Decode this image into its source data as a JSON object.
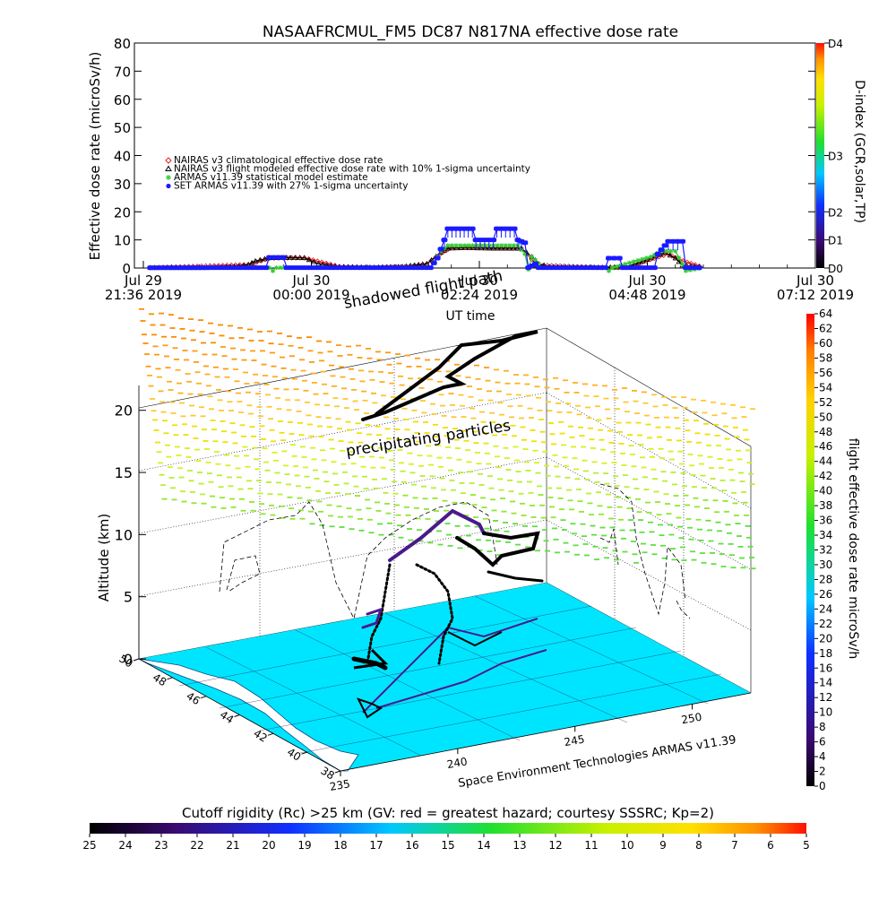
{
  "chart_data": [
    {
      "type": "line",
      "title": "NASAAFRCMUL_FM5 DC87 N817NA effective dose rate",
      "ylabel": "Effective dose rate (microSv/h)",
      "xlabel": "UT time",
      "ylim": [
        0,
        80
      ],
      "yticks": [
        "0",
        "10",
        "20",
        "30",
        "40",
        "50",
        "60",
        "70",
        "80"
      ],
      "x_range_hours": [
        0,
        9.6
      ],
      "xticks": [
        {
          "h": 0,
          "line1": "Jul 29",
          "line2": "21:36 2019"
        },
        {
          "h": 2.4,
          "line1": "Jul 30",
          "line2": "00:00 2019"
        },
        {
          "h": 4.8,
          "line1": "Jul 30",
          "line2": "02:24 2019"
        },
        {
          "h": 7.2,
          "line1": "Jul 30",
          "line2": "04:48 2019"
        },
        {
          "h": 9.6,
          "line1": "Jul 30",
          "line2": "07:12 2019"
        }
      ],
      "right_axis": {
        "label": "D-index (GCR,solar,TP)",
        "ticks": [
          {
            "label": "D0",
            "v": 0
          },
          {
            "label": "D1",
            "v": 10
          },
          {
            "label": "D2",
            "v": 20
          },
          {
            "label": "D3",
            "v": 40
          },
          {
            "label": "D4",
            "v": 80
          }
        ]
      },
      "legend_position": "middle-left",
      "series": [
        {
          "name": "NAIRAS v3 climatological effective dose rate",
          "color": "#e02020",
          "marker": "diamond",
          "points": [
            [
              0.1,
              0.1
            ],
            [
              1.5,
              1.2
            ],
            [
              1.8,
              3.5
            ],
            [
              2.0,
              3.6
            ],
            [
              2.3,
              3.6
            ],
            [
              2.8,
              0.5
            ],
            [
              3.3,
              0.2
            ],
            [
              3.8,
              0.5
            ],
            [
              4.05,
              1.5
            ],
            [
              4.3,
              6
            ],
            [
              4.4,
              7.2
            ],
            [
              4.6,
              7.4
            ],
            [
              5.0,
              7.2
            ],
            [
              5.4,
              7.0
            ],
            [
              5.55,
              3
            ],
            [
              5.65,
              1
            ],
            [
              6.5,
              0.2
            ],
            [
              6.9,
              0.2
            ],
            [
              7.3,
              3.5
            ],
            [
              7.5,
              5
            ],
            [
              7.65,
              3
            ],
            [
              8.0,
              0.2
            ]
          ]
        },
        {
          "name": "NAIRAS v3 flight modeled effective dose rate with 10% 1-sigma uncertainty",
          "color": "#000000",
          "marker": "triangle",
          "points": [
            [
              0.1,
              0.1
            ],
            [
              0.9,
              0.1
            ],
            [
              1.3,
              0.5
            ],
            [
              1.5,
              1.2
            ],
            [
              1.6,
              2.5
            ],
            [
              1.8,
              3.6
            ],
            [
              2.1,
              3.7
            ],
            [
              2.3,
              3.6
            ],
            [
              2.5,
              1.5
            ],
            [
              2.8,
              0.4
            ],
            [
              3.3,
              0.2
            ],
            [
              3.7,
              0.5
            ],
            [
              4.05,
              1.5
            ],
            [
              4.25,
              5.5
            ],
            [
              4.35,
              7.0
            ],
            [
              4.6,
              7.2
            ],
            [
              5.0,
              7.0
            ],
            [
              5.4,
              7.0
            ],
            [
              5.55,
              4
            ],
            [
              5.65,
              1.5
            ],
            [
              5.8,
              0.4
            ],
            [
              6.5,
              0.2
            ],
            [
              6.9,
              0.3
            ],
            [
              7.25,
              3.5
            ],
            [
              7.45,
              5.5
            ],
            [
              7.6,
              3.5
            ],
            [
              7.7,
              1
            ],
            [
              8.0,
              0.2
            ]
          ]
        },
        {
          "name": "ARMAS v11.39 statistical model estimate",
          "color": "#33cc33",
          "marker": "asterisk",
          "points": [
            [
              0.1,
              0.1
            ],
            [
              1.8,
              0.1
            ],
            [
              1.85,
              -1
            ],
            [
              1.9,
              0.1
            ],
            [
              4.1,
              0.1
            ],
            [
              4.25,
              6
            ],
            [
              4.35,
              8
            ],
            [
              5.0,
              8
            ],
            [
              5.35,
              8
            ],
            [
              5.45,
              5
            ],
            [
              5.5,
              -0.5
            ],
            [
              5.55,
              4
            ],
            [
              5.7,
              0.1
            ],
            [
              6.6,
              0.1
            ],
            [
              6.65,
              -1
            ],
            [
              6.7,
              0.1
            ],
            [
              7.25,
              4
            ],
            [
              7.4,
              6
            ],
            [
              7.6,
              6
            ],
            [
              7.75,
              -1
            ],
            [
              8.0,
              0.1
            ]
          ]
        },
        {
          "name": "SET ARMAS v11.39 with 27% 1-sigma uncertainty",
          "color": "#1a1aff",
          "marker": "dot",
          "points": [
            [
              0.1,
              0.1
            ],
            [
              1.75,
              0.1
            ],
            [
              1.8,
              3.8
            ],
            [
              2.0,
              3.8
            ],
            [
              2.05,
              0.1
            ],
            [
              4.1,
              0.1
            ],
            [
              4.2,
              3.5
            ],
            [
              4.3,
              10
            ],
            [
              4.35,
              14
            ],
            [
              4.7,
              14
            ],
            [
              4.75,
              10
            ],
            [
              5.0,
              10
            ],
            [
              5.05,
              14
            ],
            [
              5.3,
              14
            ],
            [
              5.35,
              10
            ],
            [
              5.45,
              9
            ],
            [
              5.5,
              0.1
            ],
            [
              5.6,
              1.5
            ],
            [
              5.65,
              0.1
            ],
            [
              6.6,
              0.1
            ],
            [
              6.65,
              3.5
            ],
            [
              6.8,
              3.5
            ],
            [
              6.85,
              0.1
            ],
            [
              7.3,
              0.1
            ],
            [
              7.35,
              5
            ],
            [
              7.5,
              9.5
            ],
            [
              7.7,
              9.5
            ],
            [
              7.75,
              0.1
            ],
            [
              8.0,
              0.1
            ]
          ]
        }
      ]
    },
    {
      "type": "scatter",
      "ylabel": "Altitude (km)",
      "zlim": [
        0,
        22
      ],
      "z_ticks": [
        "0",
        "5",
        "10",
        "15",
        "20"
      ],
      "lat_ticks": [
        "38",
        "40",
        "42",
        "44",
        "46",
        "48",
        "50"
      ],
      "lon_ticks": [
        "235",
        "240",
        "245",
        "250"
      ],
      "annotations": [
        "shadowed flight path",
        "precipitating particles",
        "Space Environment Technologies ARMAS v11.39"
      ],
      "colorbar": {
        "label": "flight effective dose rate microSv/h",
        "min": 0,
        "max": 64,
        "ticks": [
          "0",
          "2",
          "4",
          "6",
          "8",
          "10",
          "12",
          "14",
          "16",
          "18",
          "20",
          "22",
          "24",
          "26",
          "28",
          "30",
          "32",
          "34",
          "36",
          "38",
          "40",
          "42",
          "44",
          "46",
          "48",
          "50",
          "52",
          "54",
          "56",
          "58",
          "60",
          "62",
          "64"
        ]
      },
      "cutoff_colorbar": {
        "label": "Cutoff rigidity (Rc) >25 km (GV: red = greatest hazard; courtesy SSSRC; Kp=2)",
        "ticks": [
          "25",
          "24",
          "23",
          "22",
          "21",
          "20",
          "19",
          "18",
          "17",
          "16",
          "15",
          "14",
          "13",
          "12",
          "11",
          "10",
          "9",
          "8",
          "7",
          "6",
          "5"
        ]
      }
    }
  ],
  "colors": {
    "ground": "#00e5ff",
    "flight_high": "#000000",
    "flight_mid": "#4a1a8c"
  }
}
